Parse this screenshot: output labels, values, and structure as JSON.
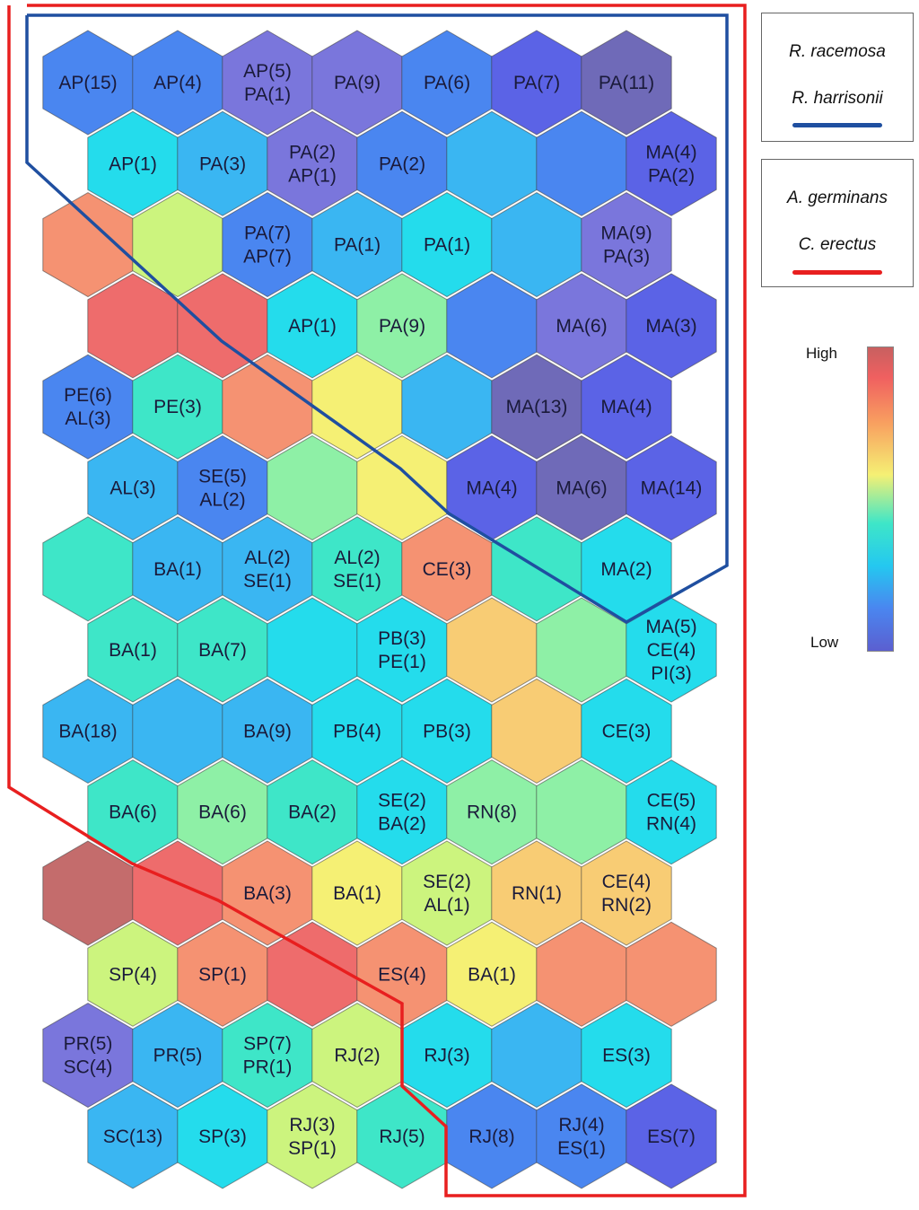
{
  "colors": {
    "1": "#5b63e6",
    "2": "#4a86f0",
    "3": "#3ab6f2",
    "4": "#24dcec",
    "5": "#3ee6c8",
    "6": "#8ef0a6",
    "7": "#ccf47e",
    "8": "#f5f074",
    "9": "#f8cc74",
    "10": "#f59272",
    "11": "#ee6c6c",
    "12": "#6f6ab8",
    "13": "#c46c6c",
    "14": "#7a76dc"
  },
  "grid": [
    [
      [
        "AP(15)",
        2
      ],
      [
        "AP(4)",
        2
      ],
      [
        "AP(5)\nPA(1)",
        14
      ],
      [
        "PA(9)",
        14
      ],
      [
        "PA(6)",
        2
      ],
      [
        "PA(7)",
        1
      ],
      [
        "PA(11)",
        12
      ]
    ],
    [
      [
        "AP(1)",
        4
      ],
      [
        "PA(3)",
        3
      ],
      [
        "PA(2)\nAP(1)",
        14
      ],
      [
        "PA(2)",
        2
      ],
      [
        "",
        3
      ],
      [
        "",
        2
      ],
      [
        "MA(4)\nPA(2)",
        1
      ]
    ],
    [
      [
        "",
        10
      ],
      [
        "",
        7
      ],
      [
        "PA(7)\nAP(7)",
        2
      ],
      [
        "PA(1)",
        3
      ],
      [
        "PA(1)",
        4
      ],
      [
        "",
        3
      ],
      [
        "MA(9)\nPA(3)",
        14
      ]
    ],
    [
      [
        "",
        11
      ],
      [
        "",
        11
      ],
      [
        "AP(1)",
        4
      ],
      [
        "PA(9)",
        6
      ],
      [
        "",
        2
      ],
      [
        "MA(6)",
        14
      ],
      [
        "MA(3)",
        1
      ]
    ],
    [
      [
        "PE(6)\nAL(3)",
        2
      ],
      [
        "PE(3)",
        5
      ],
      [
        "",
        10
      ],
      [
        "",
        8
      ],
      [
        "",
        3
      ],
      [
        "MA(13)",
        12
      ],
      [
        "MA(4)",
        1
      ]
    ],
    [
      [
        "AL(3)",
        3
      ],
      [
        "SE(5)\nAL(2)",
        2
      ],
      [
        "",
        6
      ],
      [
        "",
        8
      ],
      [
        "MA(4)",
        1
      ],
      [
        "MA(6)",
        12
      ],
      [
        "MA(14)",
        1
      ]
    ],
    [
      [
        "",
        5
      ],
      [
        "BA(1)",
        3
      ],
      [
        "AL(2)\nSE(1)",
        3
      ],
      [
        "AL(2)\nSE(1)",
        5
      ],
      [
        "CE(3)",
        10
      ],
      [
        "",
        5
      ],
      [
        "MA(2)",
        4
      ]
    ],
    [
      [
        "BA(1)",
        5
      ],
      [
        "BA(7)",
        5
      ],
      [
        "",
        4
      ],
      [
        "PB(3)\nPE(1)",
        4
      ],
      [
        "",
        9
      ],
      [
        "",
        6
      ],
      [
        "MA(5)\nCE(4)\nPI(3)",
        4
      ]
    ],
    [
      [
        "BA(18)",
        3
      ],
      [
        "",
        3
      ],
      [
        "BA(9)",
        3
      ],
      [
        "PB(4)",
        4
      ],
      [
        "PB(3)",
        4
      ],
      [
        "",
        9
      ],
      [
        "CE(3)",
        4
      ]
    ],
    [
      [
        "BA(6)",
        5
      ],
      [
        "BA(6)",
        6
      ],
      [
        "BA(2)",
        5
      ],
      [
        "SE(2)\nBA(2)",
        4
      ],
      [
        "RN(8)",
        6
      ],
      [
        "",
        6
      ],
      [
        "CE(5)\nRN(4)",
        4
      ]
    ],
    [
      [
        "",
        13
      ],
      [
        "",
        11
      ],
      [
        "BA(3)",
        10
      ],
      [
        "BA(1)",
        8
      ],
      [
        "SE(2)\nAL(1)",
        7
      ],
      [
        "RN(1)",
        9
      ],
      [
        "CE(4)\nRN(2)",
        9
      ]
    ],
    [
      [
        "SP(4)",
        7
      ],
      [
        "SP(1)",
        10
      ],
      [
        "",
        11
      ],
      [
        "ES(4)",
        10
      ],
      [
        "BA(1)",
        8
      ],
      [
        "",
        10
      ],
      [
        "",
        10
      ]
    ],
    [
      [
        "PR(5)\nSC(4)",
        14
      ],
      [
        "PR(5)",
        3
      ],
      [
        "SP(7)\nPR(1)",
        5
      ],
      [
        "RJ(2)",
        7
      ],
      [
        "RJ(3)",
        4
      ],
      [
        "",
        3
      ],
      [
        "ES(3)",
        4
      ]
    ],
    [
      [
        "SC(13)",
        3
      ],
      [
        "SP(3)",
        4
      ],
      [
        "RJ(3)\nSP(1)",
        7
      ],
      [
        "RJ(5)",
        5
      ],
      [
        "RJ(8)",
        2
      ],
      [
        "RJ(4)\nES(1)",
        2
      ],
      [
        "ES(7)",
        1
      ]
    ]
  ],
  "legend": {
    "box1": {
      "line1": "R. racemosa",
      "line2": "R. harrisonii",
      "color": "#1f4fa0"
    },
    "box2": {
      "line1": "A. germinans",
      "line2": "C. erectus",
      "color": "#e81f1f"
    }
  },
  "scale": {
    "high": "High",
    "low": "Low"
  }
}
